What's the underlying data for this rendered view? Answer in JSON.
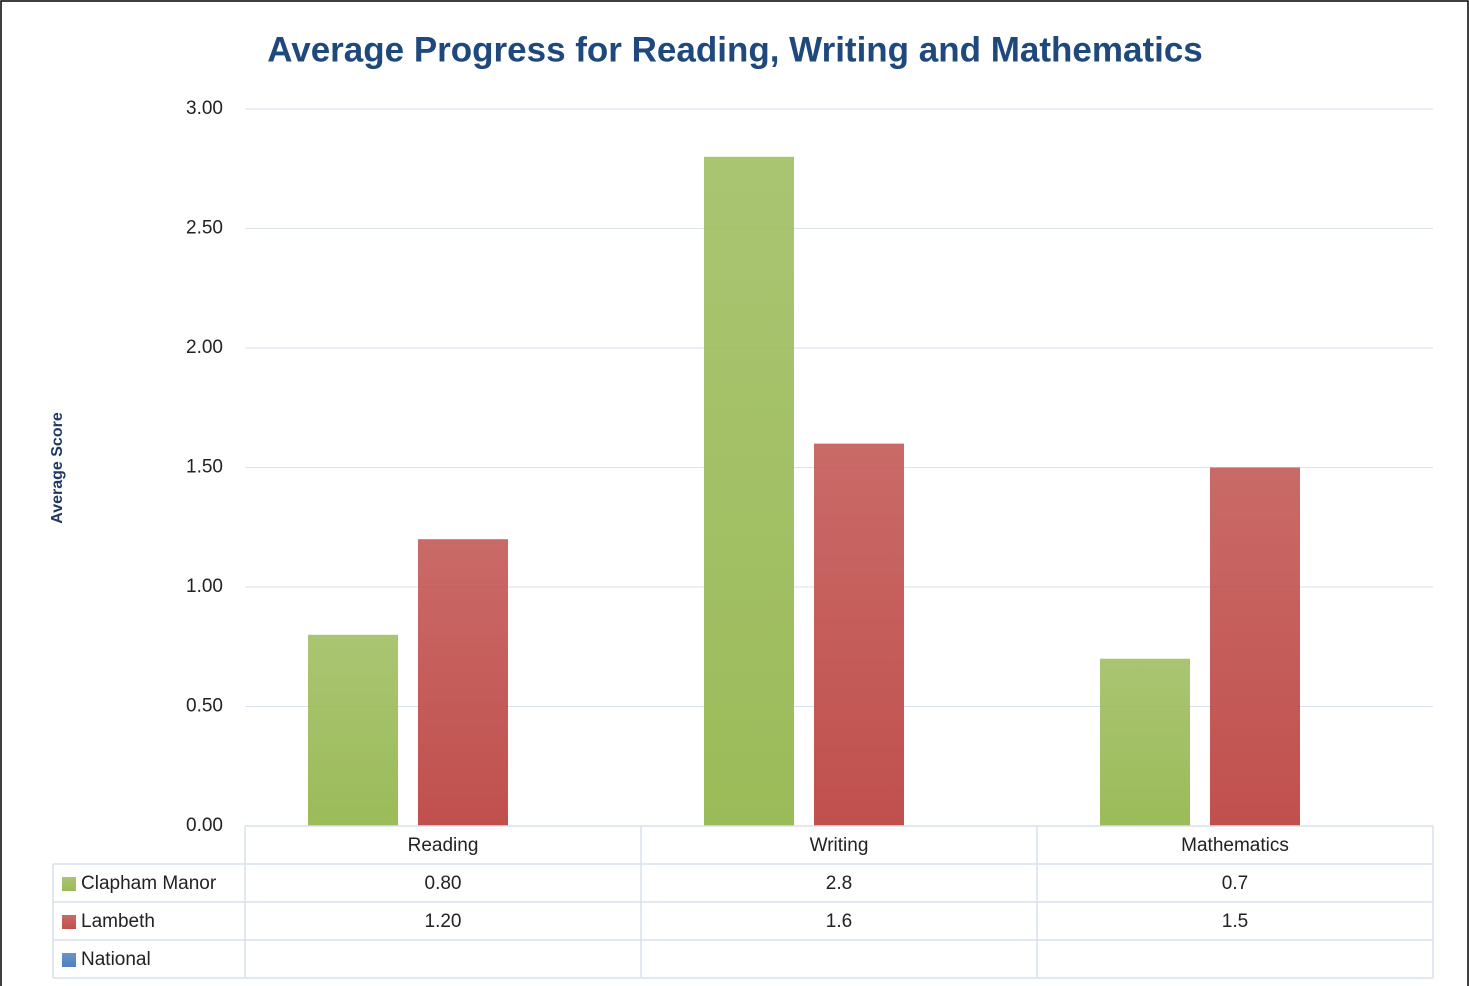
{
  "chart_data": {
    "type": "bar",
    "title": "Average Progress for Reading, Writing and Mathematics",
    "y_label": "Average Score",
    "categories": [
      "Reading",
      "Writing",
      "Mathematics"
    ],
    "series": [
      {
        "name": "Clapham Manor",
        "color": "#9bbb59",
        "values": [
          0.8,
          2.8,
          0.7
        ],
        "value_labels": [
          "0.80",
          "2.8",
          "0.7"
        ]
      },
      {
        "name": "Lambeth",
        "color": "#c0504d",
        "values": [
          1.2,
          1.6,
          1.5
        ],
        "value_labels": [
          "1.20",
          "1.6",
          "1.5"
        ]
      },
      {
        "name": "National",
        "color": "#4f81bd",
        "values": [
          null,
          null,
          null
        ]
      }
    ],
    "ylim": [
      0,
      3
    ],
    "yticks": [
      {
        "value": 0,
        "label": "0.00"
      },
      {
        "value": 0.5,
        "label": "0.50"
      },
      {
        "value": 1,
        "label": "1.00"
      },
      {
        "value": 1.5,
        "label": "1.50"
      },
      {
        "value": 2,
        "label": "2.00"
      },
      {
        "value": 2.5,
        "label": "2.50"
      },
      {
        "value": 3,
        "label": "3.00"
      }
    ],
    "grid": true
  }
}
